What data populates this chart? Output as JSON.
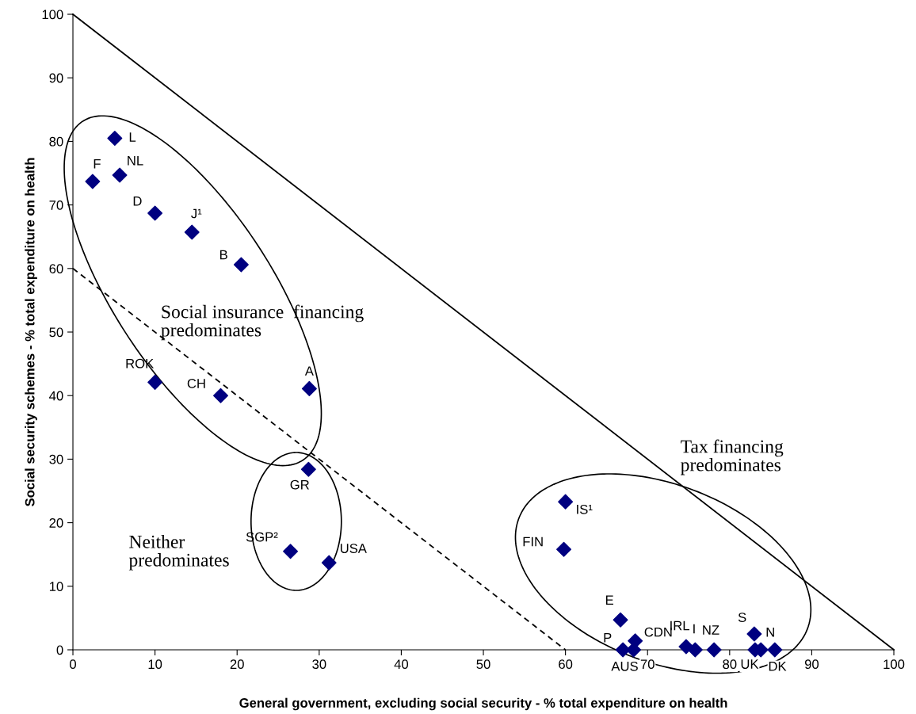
{
  "chart_data": {
    "type": "scatter",
    "xlabel": "General government, excluding social security - % total expenditure on health",
    "ylabel": "Social security schemes - % total expenditure on health",
    "xlim": [
      0,
      100
    ],
    "ylim": [
      0,
      100
    ],
    "xticks": [
      0,
      10,
      20,
      30,
      40,
      50,
      60,
      70,
      80,
      90,
      100
    ],
    "yticks": [
      0,
      10,
      20,
      30,
      40,
      50,
      60,
      70,
      80,
      90,
      100
    ],
    "grid": false,
    "legend": false,
    "marker": "diamond",
    "annotations": [
      "Social insurance  financing\npredominates",
      "Neither\npredominates",
      "Tax financing\npredominates"
    ],
    "series": [
      {
        "name": "L",
        "color": "#000080",
        "x": [
          5.1
        ],
        "values": [
          80.5
        ]
      },
      {
        "name": "F",
        "color": "#000080",
        "x": [
          2.4
        ],
        "values": [
          73.7
        ]
      },
      {
        "name": "NL",
        "color": "#000080",
        "x": [
          5.7
        ],
        "values": [
          74.7
        ]
      },
      {
        "name": "D",
        "color": "#000080",
        "x": [
          10.0
        ],
        "values": [
          68.7
        ]
      },
      {
        "name": "J¹",
        "color": "#000080",
        "x": [
          14.5
        ],
        "values": [
          65.7
        ]
      },
      {
        "name": "B",
        "color": "#000080",
        "x": [
          20.5
        ],
        "values": [
          60.6
        ]
      },
      {
        "name": "ROK",
        "color": "#000080",
        "x": [
          10.0
        ],
        "values": [
          42.1
        ]
      },
      {
        "name": "CH",
        "color": "#000080",
        "x": [
          18.0
        ],
        "values": [
          40.0
        ]
      },
      {
        "name": "A",
        "color": "#000080",
        "x": [
          28.8
        ],
        "values": [
          41.1
        ]
      },
      {
        "name": "GR",
        "color": "#000080",
        "x": [
          28.7
        ],
        "values": [
          28.4
        ]
      },
      {
        "name": "SGP²",
        "color": "#000080",
        "x": [
          26.5
        ],
        "values": [
          15.5
        ]
      },
      {
        "name": "USA",
        "color": "#000080",
        "x": [
          31.2
        ],
        "values": [
          13.7
        ]
      },
      {
        "name": "IS¹",
        "color": "#000080",
        "x": [
          60.0
        ],
        "values": [
          23.3
        ]
      },
      {
        "name": "FIN",
        "color": "#000080",
        "x": [
          59.8
        ],
        "values": [
          15.8
        ]
      },
      {
        "name": "E",
        "color": "#000080",
        "x": [
          66.7
        ],
        "values": [
          4.7
        ]
      },
      {
        "name": "CDN",
        "color": "#000080",
        "x": [
          68.5
        ],
        "values": [
          1.4
        ]
      },
      {
        "name": "P",
        "color": "#000080",
        "x": [
          67.0
        ],
        "values": [
          0
        ]
      },
      {
        "name": "AUS",
        "color": "#000080",
        "x": [
          68.3
        ],
        "values": [
          0
        ]
      },
      {
        "name": "IRL",
        "color": "#000080",
        "x": [
          74.7
        ],
        "values": [
          0.5
        ]
      },
      {
        "name": "I",
        "color": "#000080",
        "x": [
          75.8
        ],
        "values": [
          0
        ]
      },
      {
        "name": "NZ",
        "color": "#000080",
        "x": [
          78.1
        ],
        "values": [
          0
        ]
      },
      {
        "name": "S",
        "color": "#000080",
        "x": [
          83.0
        ],
        "values": [
          2.5
        ]
      },
      {
        "name": "UK",
        "color": "#000080",
        "x": [
          83.1
        ],
        "values": [
          0
        ]
      },
      {
        "name": "DK",
        "color": "#000080",
        "x": [
          83.8
        ],
        "values": [
          0
        ]
      },
      {
        "name": "N",
        "color": "#000080",
        "x": [
          85.5
        ],
        "values": [
          0
        ]
      },
      {
        "type": "line",
        "color": "#000000",
        "line_style": "solid",
        "marker": "none",
        "x": [
          0,
          100
        ],
        "values": [
          100,
          0
        ]
      },
      {
        "type": "line",
        "color": "#000000",
        "line_style": "dashed",
        "marker": "none",
        "x": [
          0,
          60
        ],
        "values": [
          60,
          0
        ]
      }
    ]
  }
}
